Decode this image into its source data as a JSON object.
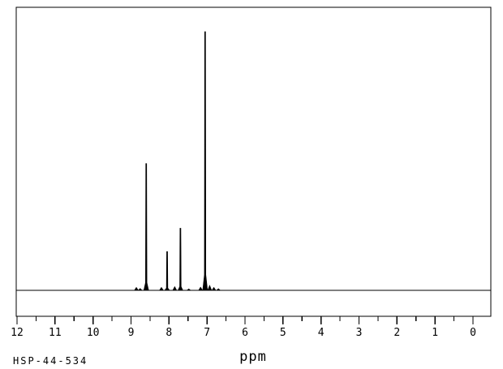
{
  "sample_id": "HSP-44-534",
  "colors": {
    "line": "#000000",
    "background": "#ffffff"
  },
  "chart_data": {
    "type": "line",
    "subtype": "1H-NMR-spectrum",
    "title": "",
    "xlabel": "ppm",
    "ylabel": "",
    "x_axis": {
      "min": 0,
      "max": 12,
      "reversed": true,
      "major_tick_step": 1,
      "minor_tick_step": 0.5,
      "tick_labels": [
        "12",
        "11",
        "10",
        "9",
        "8",
        "7",
        "6",
        "5",
        "4",
        "3",
        "2",
        "1",
        "0"
      ]
    },
    "y_axis": {
      "visible": false
    },
    "grid": false,
    "legend": false,
    "baseline_intensity": 0,
    "peaks": [
      {
        "ppm": 8.6,
        "intensity": 0.49
      },
      {
        "ppm": 8.05,
        "intensity": 0.15
      },
      {
        "ppm": 7.7,
        "intensity": 0.24
      },
      {
        "ppm": 7.05,
        "intensity": 1.0
      }
    ],
    "noise_bumps": [
      {
        "ppm": 8.86,
        "intensity": 0.012
      },
      {
        "ppm": 8.76,
        "intensity": 0.008
      },
      {
        "ppm": 8.2,
        "intensity": 0.012
      },
      {
        "ppm": 7.85,
        "intensity": 0.015
      },
      {
        "ppm": 7.48,
        "intensity": 0.006
      },
      {
        "ppm": 7.17,
        "intensity": 0.013
      },
      {
        "ppm": 6.93,
        "intensity": 0.02
      },
      {
        "ppm": 6.82,
        "intensity": 0.012
      },
      {
        "ppm": 6.7,
        "intensity": 0.007
      }
    ]
  }
}
